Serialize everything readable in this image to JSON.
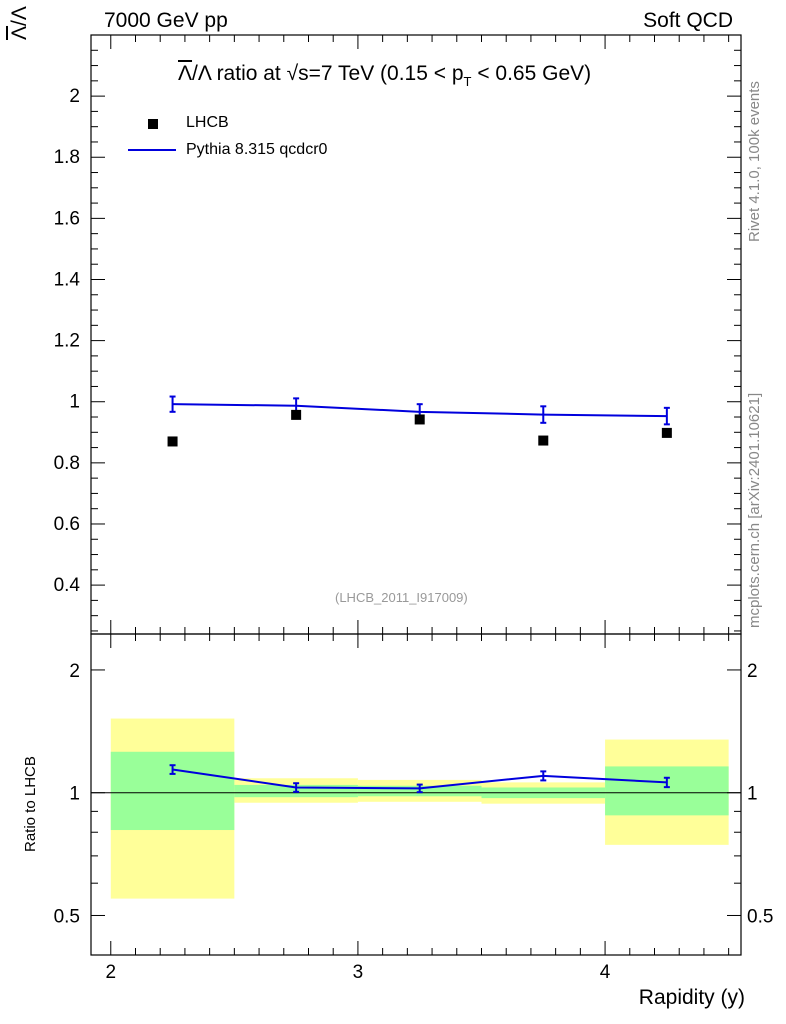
{
  "header": {
    "left": "7000 GeV pp",
    "right": "Soft QCD"
  },
  "side_text": {
    "rivet": "Rivet 4.1.0,  100k events",
    "mcplots": "mcplots.cern.ch [arXiv:2401.10621]"
  },
  "chart_data": {
    "type": "scatter",
    "title_parts": {
      "num": "Λ",
      "den": "/Λ ratio at √s=7 TeV (0.15 < p",
      "sub": "T",
      "tail": " < 0.65 GeV)"
    },
    "ylabel_parts": {
      "num": "Λ",
      "den": "/Λ"
    },
    "xlabel": "Rapidity (y)",
    "watermark": "(LHCB_2011_I917009)",
    "xlim": [
      1.92,
      4.55
    ],
    "ylim": [
      0.24,
      2.2
    ],
    "x_ticks": [
      "2",
      "3",
      "4"
    ],
    "y_ticks": [
      "0.4",
      "0.6",
      "0.8",
      "1",
      "1.2",
      "1.4",
      "1.6",
      "1.8",
      "2"
    ],
    "legend": {
      "data_label": "LHCB",
      "mc_label": "Pythia 8.315 qcdcr0"
    },
    "colors": {
      "mc": "#0000dd",
      "data": "#000000",
      "band_inner": "#99ff99",
      "band_outer": "#ffff99"
    },
    "series": [
      {
        "name": "LHCB",
        "x": [
          2.25,
          2.75,
          3.25,
          3.75,
          4.25
        ],
        "y": [
          0.87,
          0.957,
          0.942,
          0.873,
          0.898
        ]
      },
      {
        "name": "Pythia 8.315 qcdcr0",
        "x": [
          2.25,
          2.75,
          3.25,
          3.75,
          4.25
        ],
        "y": [
          0.992,
          0.987,
          0.967,
          0.958,
          0.953
        ],
        "err": [
          0.025,
          0.024,
          0.025,
          0.027,
          0.027
        ]
      }
    ],
    "ratio": {
      "ylabel": "Ratio to LHCB",
      "ylim": [
        0.4,
        2.45
      ],
      "y_ticks_left": [
        "0.5",
        "1",
        "2"
      ],
      "y_ticks_right": [
        "0.5",
        "1",
        "2"
      ],
      "bins": [
        {
          "lo": 2.0,
          "hi": 2.5,
          "inner": [
            0.81,
            1.26
          ],
          "outer": [
            0.55,
            1.52
          ]
        },
        {
          "lo": 2.5,
          "hi": 3.0,
          "inner": [
            0.975,
            1.045
          ],
          "outer": [
            0.945,
            1.085
          ]
        },
        {
          "lo": 3.0,
          "hi": 3.5,
          "inner": [
            0.98,
            1.04
          ],
          "outer": [
            0.95,
            1.075
          ]
        },
        {
          "lo": 3.5,
          "hi": 4.0,
          "inner": [
            0.97,
            1.03
          ],
          "outer": [
            0.94,
            1.06
          ]
        },
        {
          "lo": 4.0,
          "hi": 4.5,
          "inner": [
            0.88,
            1.16
          ],
          "outer": [
            0.745,
            1.35
          ]
        }
      ],
      "mc_ratio": [
        1.14,
        1.03,
        1.025,
        1.1,
        1.06
      ],
      "mc_ratio_err": [
        0.028,
        0.025,
        0.022,
        0.028,
        0.028
      ]
    }
  }
}
